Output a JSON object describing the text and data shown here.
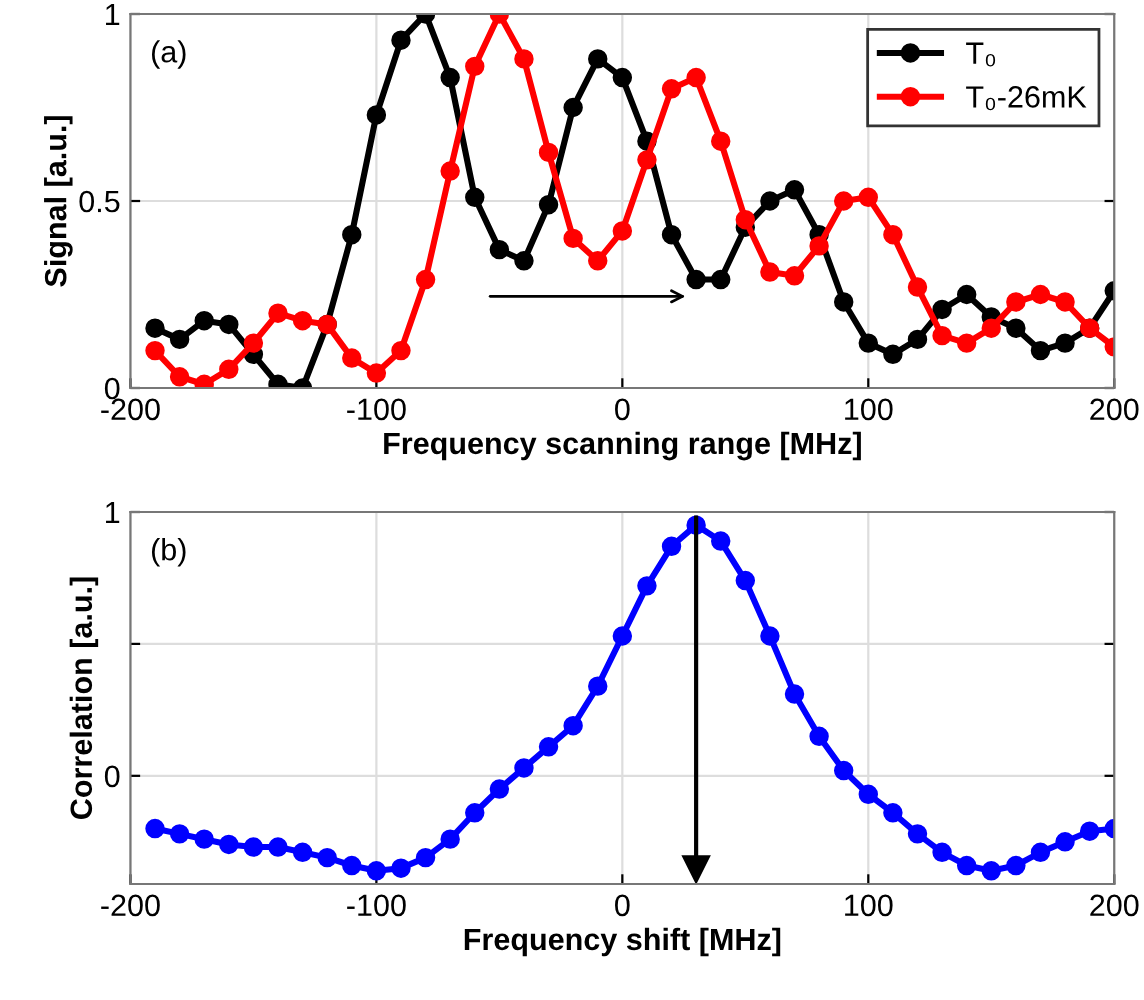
{
  "chart_data": [
    {
      "type": "line",
      "xlabel": "Frequency scanning range [MHz]",
      "ylabel": "Signal [a.u.]",
      "annotations": [
        "(a)"
      ],
      "x": [
        -190,
        -180,
        -170,
        -160,
        -150,
        -140,
        -130,
        -120,
        -110,
        -100,
        -90,
        -80,
        -70,
        -60,
        -50,
        -40,
        -30,
        -20,
        -10,
        0,
        10,
        20,
        30,
        40,
        50,
        60,
        70,
        80,
        90,
        100,
        110,
        120,
        130,
        140,
        150,
        160,
        170,
        180,
        190,
        200
      ],
      "series": [
        {
          "name": "T₀",
          "color": "#000000",
          "values": [
            0.16,
            0.13,
            0.18,
            0.17,
            0.09,
            0.01,
            0.0,
            0.17,
            0.41,
            0.73,
            0.93,
            1.0,
            0.83,
            0.51,
            0.37,
            0.34,
            0.49,
            0.75,
            0.88,
            0.83,
            0.66,
            0.41,
            0.29,
            0.29,
            0.43,
            0.5,
            0.53,
            0.41,
            0.23,
            0.12,
            0.09,
            0.13,
            0.21,
            0.25,
            0.19,
            0.16,
            0.1,
            0.12,
            0.16,
            0.26
          ]
        },
        {
          "name": "T₀-26mK",
          "color": "#ff0000",
          "values": [
            0.1,
            0.03,
            0.01,
            0.05,
            0.12,
            0.2,
            0.18,
            0.17,
            0.08,
            0.04,
            0.1,
            0.29,
            0.58,
            0.86,
            1.0,
            0.88,
            0.63,
            0.4,
            0.34,
            0.42,
            0.61,
            0.8,
            0.83,
            0.66,
            0.45,
            0.31,
            0.3,
            0.38,
            0.5,
            0.51,
            0.41,
            0.27,
            0.14,
            0.12,
            0.16,
            0.23,
            0.25,
            0.23,
            0.16,
            0.11
          ]
        }
      ],
      "xlim": [
        -200,
        200
      ],
      "xticks": [
        -200,
        -100,
        0,
        100,
        200
      ],
      "ylim": [
        0,
        1
      ],
      "yticks": [
        0,
        0.5,
        1
      ],
      "grid": true,
      "legend": "top right",
      "marker": "circle",
      "line_style": "solid"
    },
    {
      "type": "line",
      "xlabel": "Frequency shift [MHz]",
      "ylabel": "Correlation [a.u.]",
      "annotations": [
        "(b)"
      ],
      "x": [
        -190,
        -180,
        -170,
        -160,
        -150,
        -140,
        -130,
        -120,
        -110,
        -100,
        -90,
        -80,
        -70,
        -60,
        -50,
        -40,
        -30,
        -20,
        -10,
        0,
        10,
        20,
        30,
        40,
        50,
        60,
        70,
        80,
        90,
        100,
        110,
        120,
        130,
        140,
        150,
        160,
        170,
        180,
        190,
        200
      ],
      "series": [
        {
          "color": "#0000ff",
          "values": [
            -0.2,
            -0.22,
            -0.24,
            -0.26,
            -0.27,
            -0.27,
            -0.29,
            -0.31,
            -0.34,
            -0.36,
            -0.35,
            -0.31,
            -0.24,
            -0.14,
            -0.05,
            0.03,
            0.11,
            0.19,
            0.34,
            0.53,
            0.72,
            0.87,
            0.95,
            0.89,
            0.74,
            0.53,
            0.31,
            0.15,
            0.02,
            -0.07,
            -0.14,
            -0.22,
            -0.29,
            -0.34,
            -0.36,
            -0.34,
            -0.29,
            -0.25,
            -0.21,
            -0.2
          ]
        }
      ],
      "ref_lines": [
        {
          "axis": "x",
          "value": 30,
          "color": "#000000"
        }
      ],
      "xlim": [
        -200,
        200
      ],
      "xticks": [
        -200,
        -100,
        0,
        100,
        200
      ],
      "ylim": [
        -0.41,
        1
      ],
      "yticks": [
        0,
        {
          "value": 0.5,
          "label": null
        },
        1
      ],
      "grid": true,
      "marker": "circle",
      "line_style": "solid"
    }
  ]
}
